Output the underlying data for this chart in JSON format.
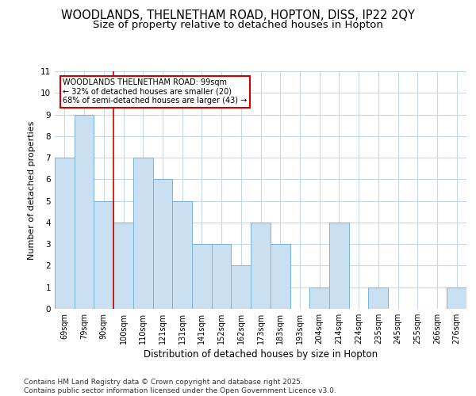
{
  "title1": "WOODLANDS, THELNETHAM ROAD, HOPTON, DISS, IP22 2QY",
  "title2": "Size of property relative to detached houses in Hopton",
  "xlabel": "Distribution of detached houses by size in Hopton",
  "ylabel": "Number of detached properties",
  "categories": [
    "69sqm",
    "79sqm",
    "90sqm",
    "100sqm",
    "110sqm",
    "121sqm",
    "131sqm",
    "141sqm",
    "152sqm",
    "162sqm",
    "173sqm",
    "183sqm",
    "193sqm",
    "204sqm",
    "214sqm",
    "224sqm",
    "235sqm",
    "245sqm",
    "255sqm",
    "266sqm",
    "276sqm"
  ],
  "values": [
    7,
    9,
    5,
    4,
    7,
    6,
    5,
    3,
    3,
    2,
    4,
    3,
    0,
    1,
    4,
    0,
    1,
    0,
    0,
    0,
    1
  ],
  "bar_color": "#c9dff2",
  "bar_edge_color": "#7ab3d9",
  "red_line_after_index": 2,
  "annotation_line1": "WOODLANDS THELNETHAM ROAD: 99sqm",
  "annotation_line2": "← 32% of detached houses are smaller (20)",
  "annotation_line3": "68% of semi-detached houses are larger (43) →",
  "annotation_box_color": "white",
  "annotation_border_color": "#cc0000",
  "footer": "Contains HM Land Registry data © Crown copyright and database right 2025.\nContains public sector information licensed under the Open Government Licence v3.0.",
  "ylim": [
    0,
    11
  ],
  "background_color": "#ffffff",
  "plot_bg_color": "#ffffff",
  "grid_color": "#c8d8ea",
  "title_fontsize": 10.5,
  "subtitle_fontsize": 9.5,
  "tick_fontsize": 7,
  "footer_fontsize": 6.5,
  "ylabel_fontsize": 8,
  "xlabel_fontsize": 8.5
}
